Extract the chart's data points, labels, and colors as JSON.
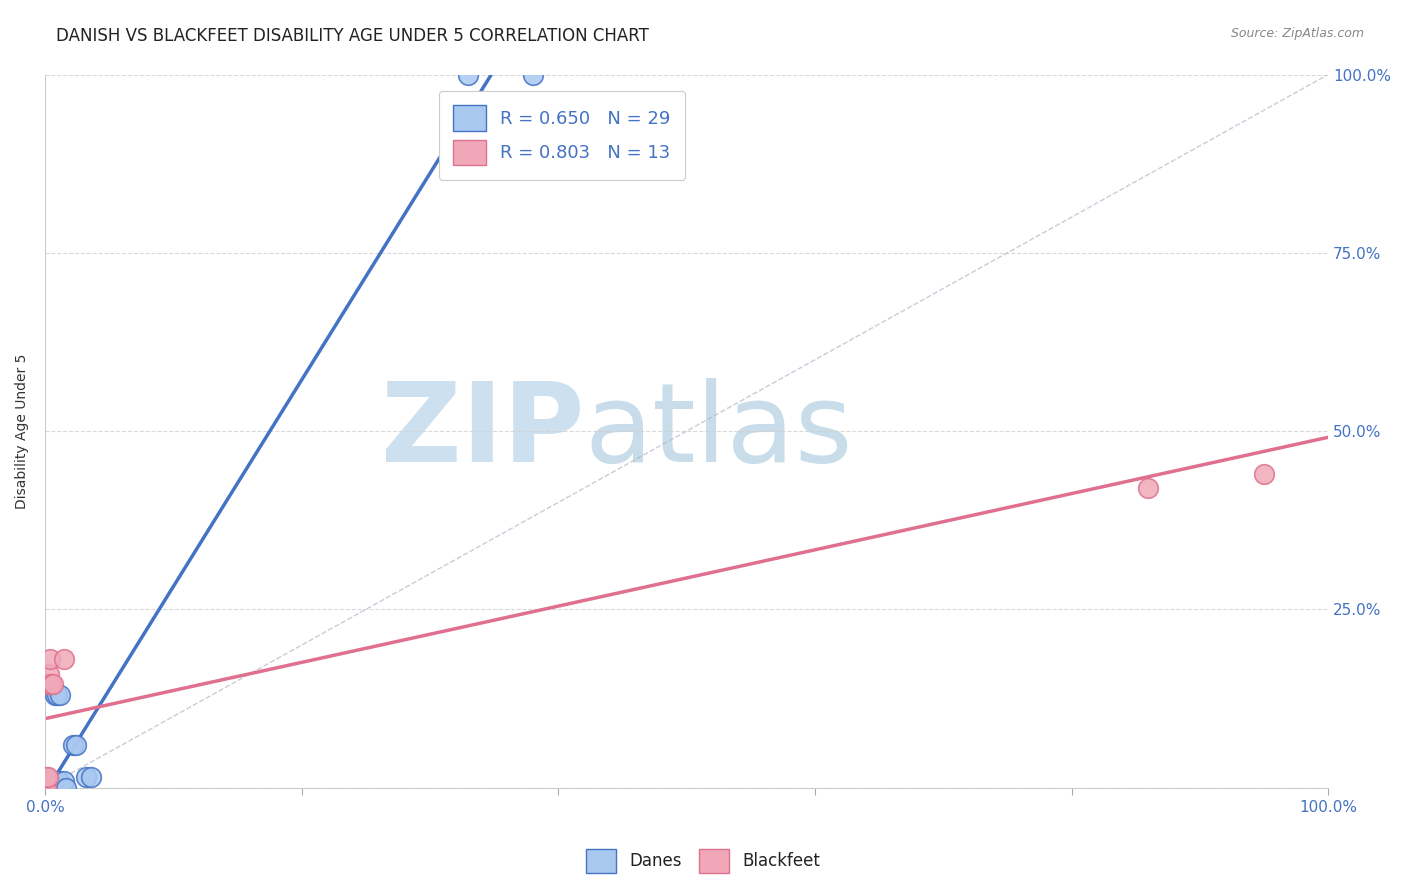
{
  "title": "DANISH VS BLACKFEET DISABILITY AGE UNDER 5 CORRELATION CHART",
  "source": "Source: ZipAtlas.com",
  "ylabel": "Disability Age Under 5",
  "danes_R": 0.65,
  "danes_N": 29,
  "blackfeet_R": 0.803,
  "blackfeet_N": 13,
  "danes_color": "#a8c8f0",
  "blackfeet_color": "#f0a8b8",
  "danes_line_color": "#4472c4",
  "blackfeet_line_color": "#e07090",
  "danes_scatter": [
    [
      0.0,
      0.0
    ],
    [
      0.001,
      0.0
    ],
    [
      0.001,
      0.0
    ],
    [
      0.002,
      0.0
    ],
    [
      0.002,
      0.0
    ],
    [
      0.003,
      0.0
    ],
    [
      0.003,
      0.0
    ],
    [
      0.003,
      0.01
    ],
    [
      0.004,
      0.0
    ],
    [
      0.004,
      0.01
    ],
    [
      0.005,
      0.0
    ],
    [
      0.005,
      0.01
    ],
    [
      0.006,
      0.01
    ],
    [
      0.007,
      0.0
    ],
    [
      0.008,
      0.13
    ],
    [
      0.009,
      0.13
    ],
    [
      0.01,
      0.01
    ],
    [
      0.011,
      0.01
    ],
    [
      0.012,
      0.13
    ],
    [
      0.013,
      0.0
    ],
    [
      0.014,
      0.0
    ],
    [
      0.015,
      0.01
    ],
    [
      0.016,
      0.0
    ],
    [
      0.022,
      0.06
    ],
    [
      0.024,
      0.06
    ],
    [
      0.032,
      0.015
    ],
    [
      0.036,
      0.015
    ],
    [
      0.33,
      1.0
    ],
    [
      0.38,
      1.0
    ]
  ],
  "blackfeet_scatter": [
    [
      0.0,
      0.0
    ],
    [
      0.001,
      0.0
    ],
    [
      0.001,
      0.015
    ],
    [
      0.002,
      0.015
    ],
    [
      0.002,
      0.145
    ],
    [
      0.003,
      0.145
    ],
    [
      0.003,
      0.16
    ],
    [
      0.004,
      0.18
    ],
    [
      0.005,
      0.145
    ],
    [
      0.006,
      0.145
    ],
    [
      0.015,
      0.18
    ],
    [
      0.86,
      0.42
    ],
    [
      0.95,
      0.44
    ]
  ],
  "xlim": [
    0.0,
    1.0
  ],
  "ylim": [
    0.0,
    1.0
  ],
  "xticks": [
    0.0,
    0.2,
    0.4,
    0.6,
    0.8,
    1.0
  ],
  "yticks": [
    0.0,
    0.25,
    0.5,
    0.75,
    1.0
  ],
  "xticklabels_bottom": [
    "0.0%",
    "",
    "",
    "",
    "",
    "100.0%"
  ],
  "yticklabels_right": [
    "",
    "25.0%",
    "50.0%",
    "75.0%",
    "100.0%"
  ],
  "title_fontsize": 12,
  "axis_label_fontsize": 10,
  "tick_fontsize": 11,
  "legend_fontsize": 13,
  "background_color": "#ffffff",
  "grid_color": "#d0d0d0",
  "danes_line_x": [
    0.0,
    0.35
  ],
  "blackfeet_line_x": [
    0.0,
    1.0
  ]
}
